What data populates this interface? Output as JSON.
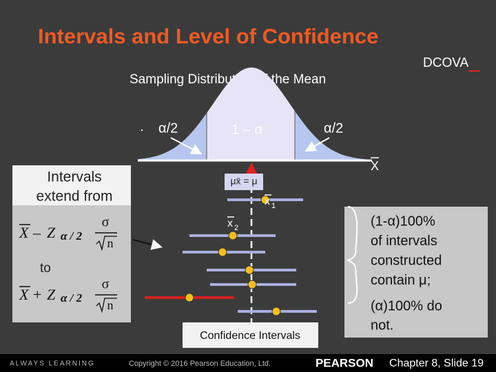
{
  "header": {
    "title": "Intervals and Level of Confidence",
    "tag": "DCOVA"
  },
  "figure": {
    "title": "Sampling Distribution of the Mean",
    "left_tail": "α/2",
    "center": "1 – α",
    "right_tail": "α/2",
    "axis_label": "X",
    "mean_label": "μx̄ = μ",
    "interval_1": "x",
    "interval_1_sub": "1",
    "interval_2": "x",
    "interval_2_sub": "2",
    "caption": "Confidence Intervals"
  },
  "left_box": {
    "intro": [
      "Intervals",
      "extend from"
    ],
    "between": "to",
    "lower": {
      "mean": "X",
      "op": "–",
      "z": "Z",
      "sub": "α / 2",
      "num": "σ",
      "den": "n"
    },
    "upper": {
      "mean": "X",
      "op": "+",
      "z": "Z",
      "sub": "α / 2",
      "num": "σ",
      "den": "n"
    }
  },
  "right_box": {
    "contain": [
      "(1-α)100%",
      "of intervals",
      "constructed",
      "contain μ;"
    ],
    "not": [
      "(α)100% do",
      "not."
    ]
  },
  "footer": {
    "left": "ALWAYS LEARNING",
    "copyright": "Copyright © 2016 Pearson Education, Ltd.",
    "brand": "PEARSON",
    "slide": "Chapter 8, Slide 19"
  }
}
